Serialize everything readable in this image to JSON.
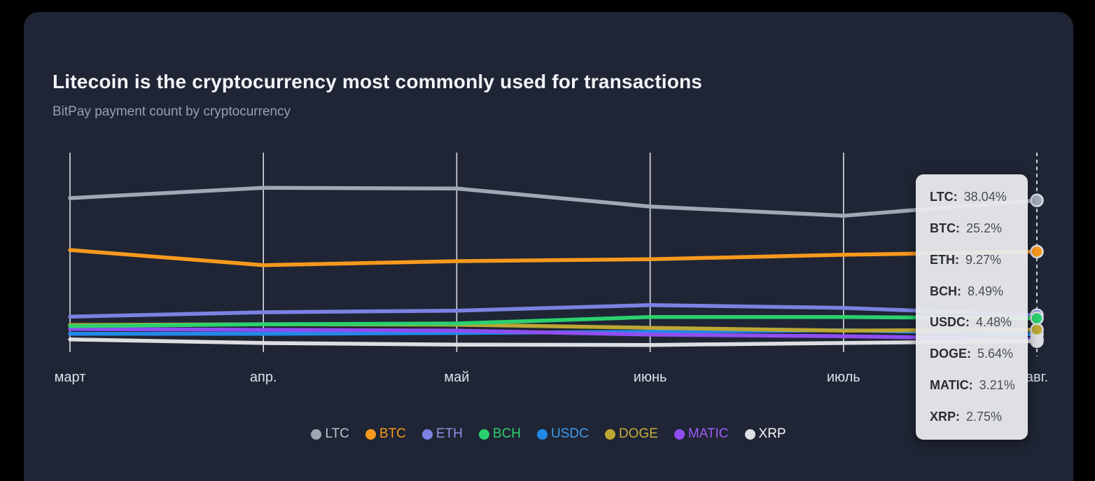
{
  "header": {
    "title": "Litecoin is the cryptocurrency most commonly used for transactions",
    "subtitle": "BitPay payment count by cryptocurrency"
  },
  "colors": {
    "page_background": "#000000",
    "card_background": "#1f2534",
    "gridline": "#eceef2",
    "dashed_line": "#ccd1da",
    "axis_label": "#dbe2ee",
    "tooltip_background": "#e9eaee",
    "tooltip_text": "#2b2d32",
    "dot_ring": "#dcdfe6"
  },
  "chart_data": {
    "type": "line",
    "title": "Litecoin is the cryptocurrency most commonly used for transactions",
    "subtitle": "BitPay payment count by cryptocurrency",
    "x_labels": [
      "март",
      "апр.",
      "май",
      "июнь",
      "июль",
      "авг."
    ],
    "ylabel": "",
    "xlabel": "",
    "ylim": [
      0,
      50
    ],
    "grid": "vertical-only",
    "legend_position": "bottom",
    "highlighted_x": "авг.",
    "series": [
      {
        "name": "LTC",
        "color": "#9fa9b6",
        "legend_text": "#b9c2ce",
        "values": [
          38.6,
          41.2,
          41.0,
          36.5,
          34.2,
          38.04
        ]
      },
      {
        "name": "BTC",
        "color": "#f8991d",
        "legend_text": "#f8991d",
        "values": [
          25.6,
          21.8,
          22.8,
          23.3,
          24.4,
          25.2
        ]
      },
      {
        "name": "ETH",
        "color": "#7a82e2",
        "legend_text": "#8c93e8",
        "values": [
          8.9,
          10.0,
          10.4,
          11.8,
          11.1,
          9.27
        ]
      },
      {
        "name": "BCH",
        "color": "#2bd16e",
        "legend_text": "#2bd16e",
        "values": [
          6.5,
          7.0,
          7.2,
          8.8,
          8.8,
          8.49
        ]
      },
      {
        "name": "USDC",
        "color": "#2189e8",
        "legend_text": "#3d9bf0",
        "values": [
          4.6,
          4.6,
          4.8,
          5.1,
          5.5,
          4.48
        ]
      },
      {
        "name": "DOGE",
        "color": "#bca733",
        "legend_text": "#c9ad3a",
        "values": [
          6.8,
          7.0,
          6.9,
          6.1,
          5.4,
          5.64
        ]
      },
      {
        "name": "MATIC",
        "color": "#8f4ef2",
        "legend_text": "#9d5bfa",
        "values": [
          5.8,
          5.6,
          5.4,
          4.4,
          4.0,
          3.21
        ]
      },
      {
        "name": "XRP",
        "color": "#dcdee2",
        "legend_text": "#f5f6f8",
        "values": [
          3.2,
          2.3,
          1.9,
          1.8,
          2.3,
          2.75
        ]
      }
    ],
    "draw_order": [
      "USDC",
      "MATIC",
      "DOGE",
      "ETH",
      "BCH",
      "BTC",
      "LTC",
      "XRP"
    ]
  },
  "tooltip": {
    "rows": [
      {
        "label": "LTC:",
        "value": "38.04%"
      },
      {
        "label": "BTC:",
        "value": "25.2%"
      },
      {
        "label": "ETH:",
        "value": "9.27%"
      },
      {
        "label": "BCH:",
        "value": "8.49%"
      },
      {
        "label": "USDC:",
        "value": "4.48%"
      },
      {
        "label": "DOGE:",
        "value": "5.64%"
      },
      {
        "label": "MATIC:",
        "value": "3.21%"
      },
      {
        "label": "XRP:",
        "value": "2.75%"
      }
    ]
  }
}
